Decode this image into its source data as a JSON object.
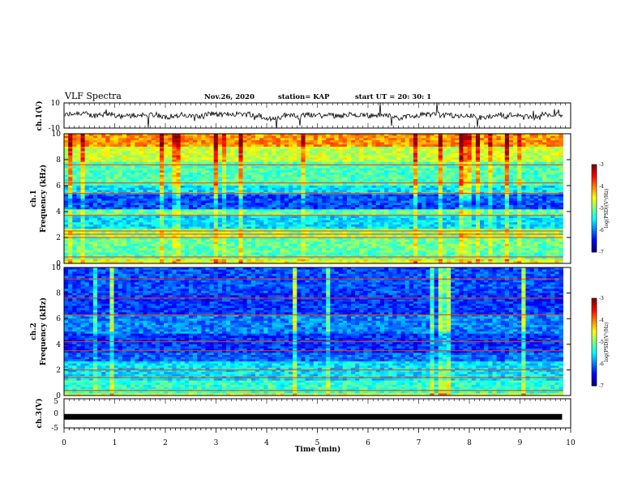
{
  "header": {
    "title": "VLF Spectra",
    "date": "Nov.26, 2020",
    "station": "station= KAP",
    "start": "start  UT =   20: 30: 1"
  },
  "chart_data": [
    {
      "type": "line",
      "panel": "ch1-waveform",
      "ylabel": "ch.1(V)",
      "ylim": [
        -10,
        10
      ],
      "yticks": [
        10,
        -10
      ],
      "xlim": [
        0,
        10
      ],
      "description_values": {
        "mean": 0,
        "typical_amplitude": 3,
        "spike_amplitude": 9
      }
    },
    {
      "type": "heatmap",
      "panel": "ch1-spectrogram",
      "ylabel": "ch.1\nFrequency (kHz)",
      "ylabel_line1": "ch.1",
      "ylabel_line2": "Frequency (kHz)",
      "ylim": [
        0,
        10
      ],
      "yticks": [
        0,
        2,
        4,
        6,
        8,
        10
      ],
      "xlim": [
        0,
        9.85
      ],
      "colorbar": {
        "label": "log(PSD)(V²/Hz)",
        "range": [
          -7,
          -3
        ],
        "ticks": [
          -3,
          -4,
          -5,
          -6,
          -7
        ]
      },
      "bands": [
        {
          "f_from": 0,
          "f_to": 0.3,
          "logpsd": -4.5
        },
        {
          "f_from": 0.3,
          "f_to": 0.9,
          "logpsd": -5.2
        },
        {
          "f_from": 0.9,
          "f_to": 2.0,
          "logpsd": -5.1
        },
        {
          "f_from": 2.0,
          "f_to": 2.6,
          "logpsd": -4.9
        },
        {
          "f_from": 2.6,
          "f_to": 3.6,
          "logpsd": -5.6
        },
        {
          "f_from": 3.6,
          "f_to": 4.2,
          "logpsd": -5.1
        },
        {
          "f_from": 4.2,
          "f_to": 5.4,
          "logpsd": -6.2
        },
        {
          "f_from": 5.4,
          "f_to": 6.0,
          "logpsd": -5.6
        },
        {
          "f_from": 6.0,
          "f_to": 7.8,
          "logpsd": -5.2
        },
        {
          "f_from": 7.8,
          "f_to": 9.0,
          "logpsd": -4.7
        },
        {
          "f_from": 9.0,
          "f_to": 10.0,
          "logpsd": -4.1
        }
      ],
      "lines_khz": [
        0.5,
        2.0,
        2.25,
        2.5,
        3.7,
        5.4,
        6.2,
        7.6
      ]
    },
    {
      "type": "heatmap",
      "panel": "ch2-spectrogram",
      "ylabel_line1": "ch.2",
      "ylabel_line2": "Frequency (kHz)",
      "ylim": [
        0,
        10
      ],
      "yticks": [
        0,
        2,
        4,
        6,
        8,
        10
      ],
      "xlim": [
        0,
        9.85
      ],
      "colorbar": {
        "label": "log(PSD)(V²/Hz)",
        "range": [
          -7,
          -3
        ],
        "ticks": [
          -3,
          -4,
          -5,
          -6,
          -7
        ]
      },
      "bands": [
        {
          "f_from": 0,
          "f_to": 0.2,
          "logpsd": -4.6
        },
        {
          "f_from": 0.2,
          "f_to": 1.2,
          "logpsd": -5.3
        },
        {
          "f_from": 1.2,
          "f_to": 2.6,
          "logpsd": -5.6
        },
        {
          "f_from": 2.6,
          "f_to": 3.4,
          "logpsd": -6.1
        },
        {
          "f_from": 3.4,
          "f_to": 4.8,
          "logpsd": -6.3
        },
        {
          "f_from": 4.8,
          "f_to": 6.4,
          "logpsd": -6.0
        },
        {
          "f_from": 6.4,
          "f_to": 8.0,
          "logpsd": -6.3
        },
        {
          "f_from": 8.0,
          "f_to": 10.0,
          "logpsd": -6.2
        }
      ],
      "lines_khz": [
        0.4,
        1.4,
        2.0,
        3.5,
        4.2,
        6.3,
        7.6,
        9.1
      ]
    },
    {
      "type": "line",
      "panel": "ch3-waveform",
      "ylabel": "ch.3(V)",
      "ylim": [
        -5,
        5
      ],
      "yticks": [
        5,
        0,
        -5
      ],
      "xlim": [
        0,
        10
      ],
      "level_v": -1.2,
      "xlabel": "Time (min)",
      "xticks": [
        0,
        1,
        2,
        3,
        4,
        5,
        6,
        7,
        8,
        9,
        10
      ]
    }
  ]
}
